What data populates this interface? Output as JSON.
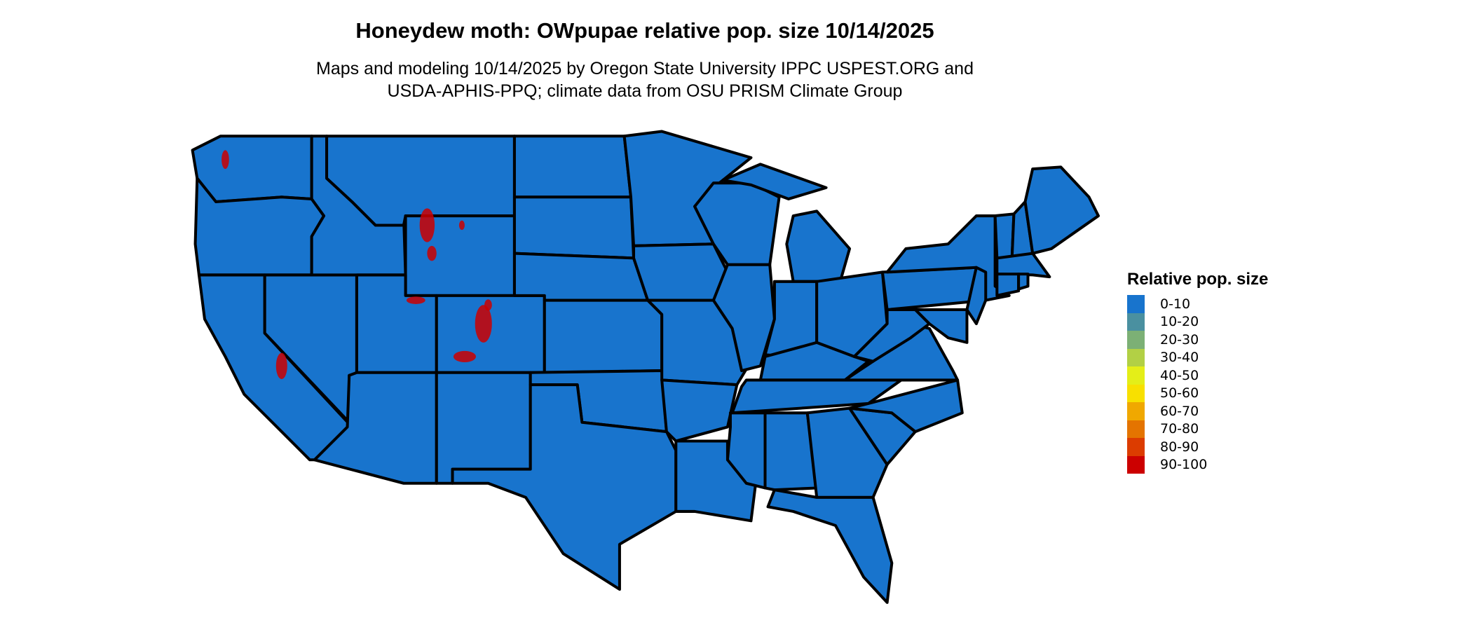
{
  "title": "Honeydew moth: OWpupae relative pop. size 10/14/2025",
  "subtitle_lines": [
    "Maps and modeling 10/14/2025 by Oregon State University IPPC USPEST.ORG and",
    "USDA-APHIS-PPQ; climate data from OSU PRISM Climate Group"
  ],
  "legend": {
    "title": "Relative pop. size",
    "items": [
      {
        "label": "0-10",
        "color": "#1874CD"
      },
      {
        "label": "10-20",
        "color": "#4A90A0"
      },
      {
        "label": "20-30",
        "color": "#7CB075"
      },
      {
        "label": "30-40",
        "color": "#B2D045"
      },
      {
        "label": "40-50",
        "color": "#E4EE18"
      },
      {
        "label": "50-60",
        "color": "#F8E000"
      },
      {
        "label": "60-70",
        "color": "#F0A800"
      },
      {
        "label": "70-80",
        "color": "#E47400"
      },
      {
        "label": "80-90",
        "color": "#DC3C00"
      },
      {
        "label": "90-100",
        "color": "#CC0000"
      }
    ]
  },
  "map": {
    "base_color": "#1874CD",
    "hotspot_color": "#CC0000",
    "border_color": "#000000"
  }
}
